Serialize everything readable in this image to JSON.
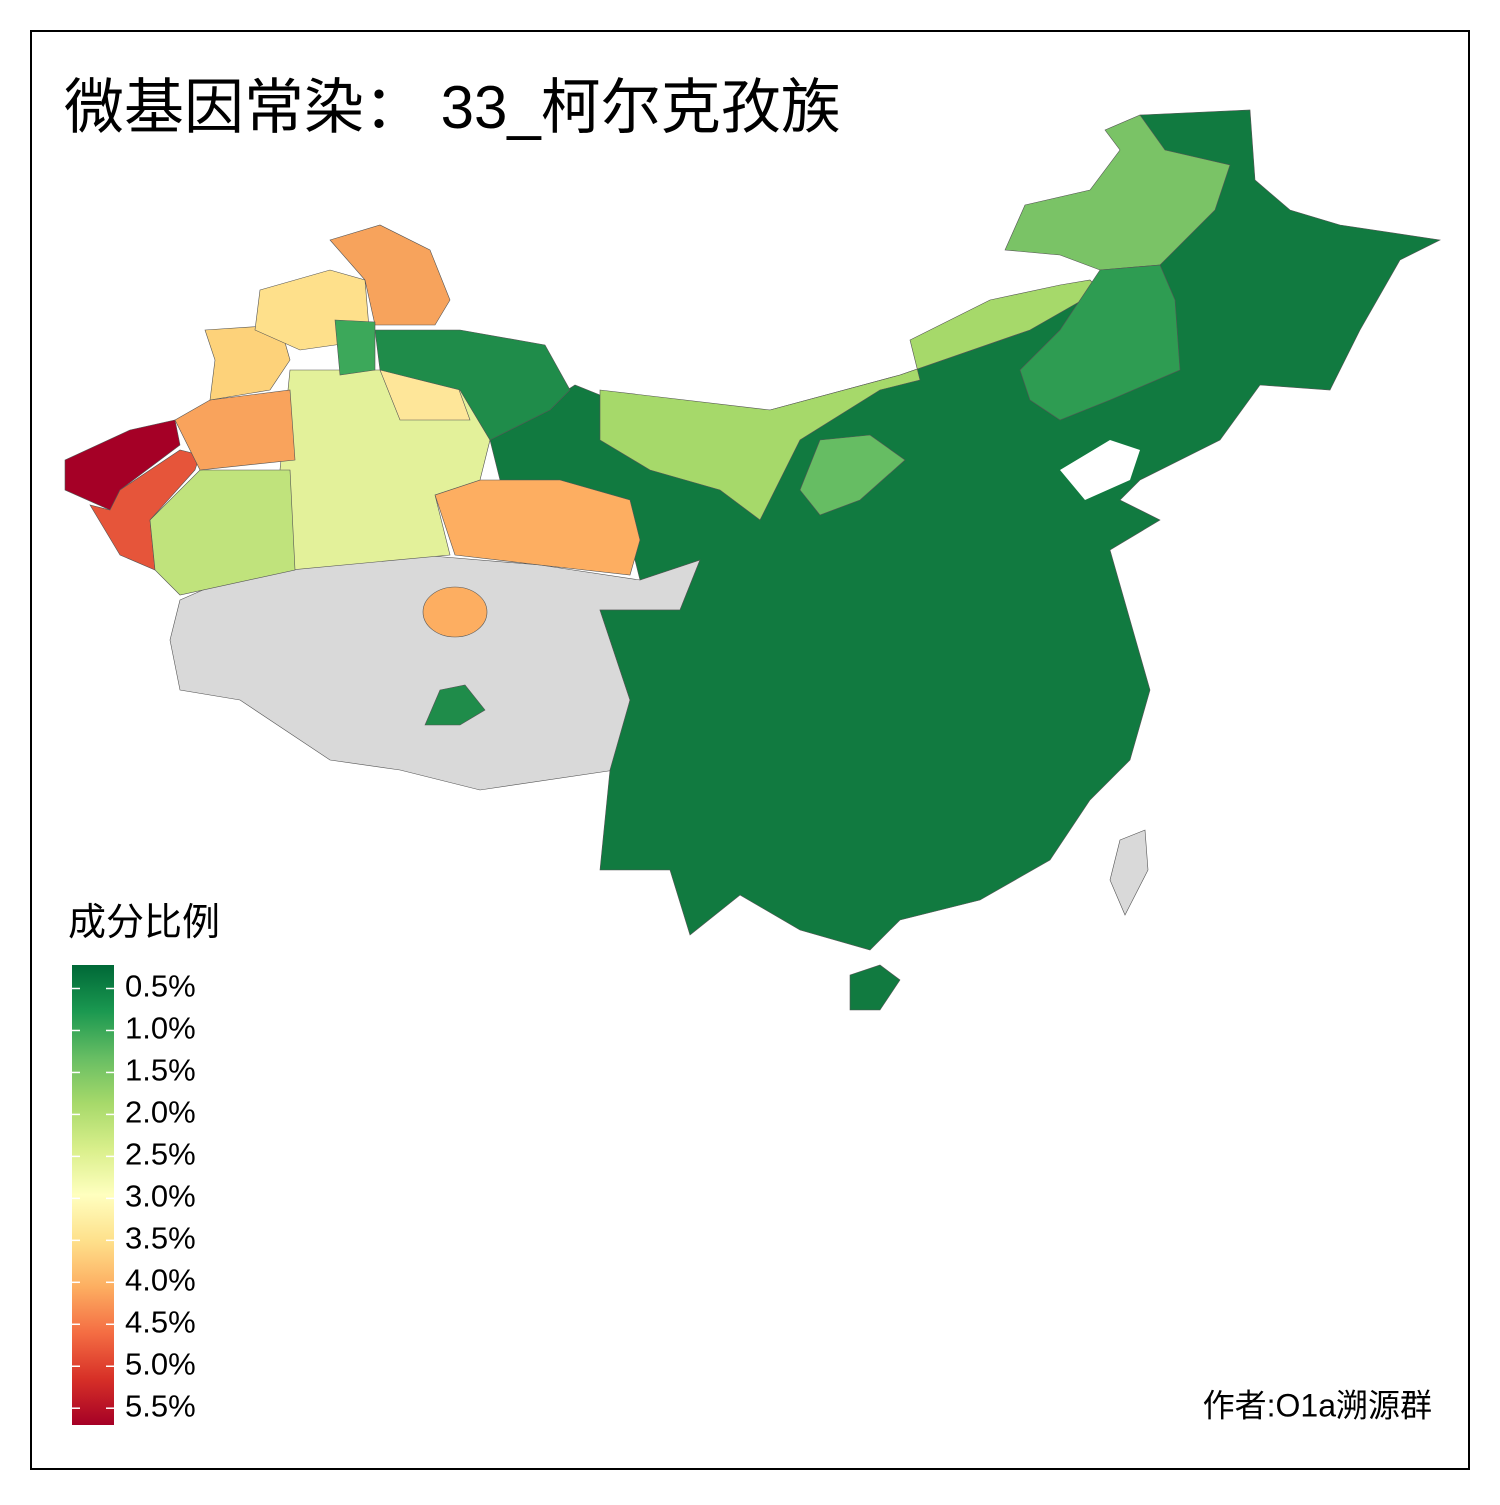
{
  "title": "微基因常染： 33_柯尔克孜族",
  "legend": {
    "title": "成分比例",
    "lim": [
      0.22,
      5.7
    ],
    "colors": [
      "#006837",
      "#1a9850",
      "#66bd63",
      "#a6d96a",
      "#d9ef8b",
      "#ffffbf",
      "#fee08b",
      "#fdae61",
      "#f46d43",
      "#d73027",
      "#a50026"
    ],
    "ticks": [
      {
        "value": 0.5,
        "label": "0.5%"
      },
      {
        "value": 1.0,
        "label": "1.0%"
      },
      {
        "value": 1.5,
        "label": "1.5%"
      },
      {
        "value": 2.0,
        "label": "2.0%"
      },
      {
        "value": 2.5,
        "label": "2.5%"
      },
      {
        "value": 3.0,
        "label": "3.0%"
      },
      {
        "value": 3.5,
        "label": "3.5%"
      },
      {
        "value": 4.0,
        "label": "4.0%"
      },
      {
        "value": 4.5,
        "label": "4.5%"
      },
      {
        "value": 5.0,
        "label": "5.0%"
      },
      {
        "value": 5.5,
        "label": "5.5%"
      }
    ]
  },
  "credit": "作者:O1a溯源群"
}
